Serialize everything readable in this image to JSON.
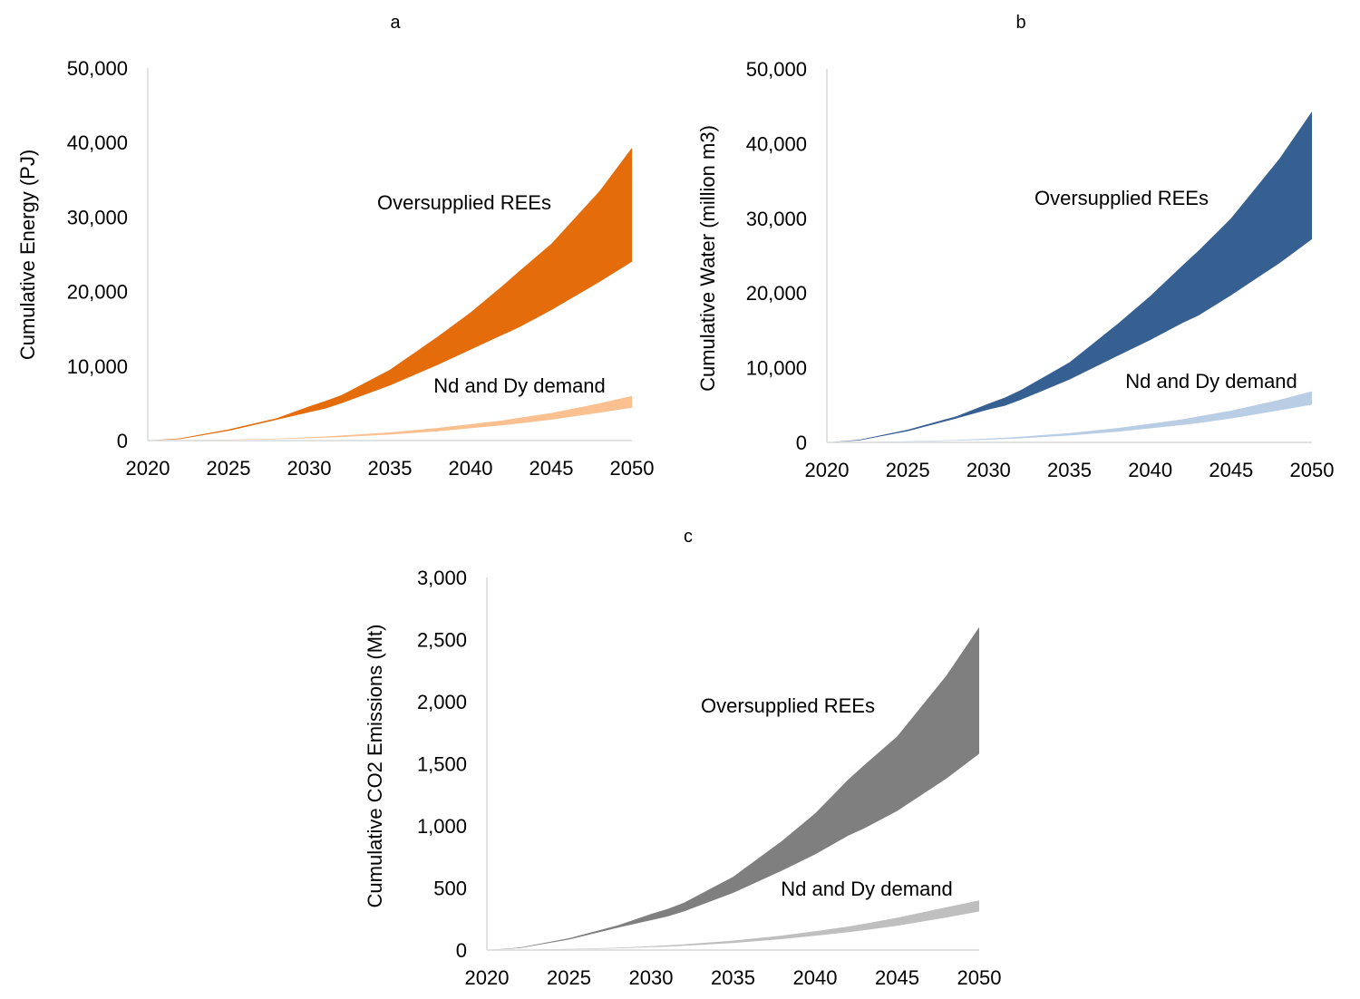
{
  "chart_data": [
    {
      "panel": "a",
      "type": "area",
      "title": "a",
      "xlabel": "",
      "ylabel": "Cumulative Energy (PJ)",
      "ylim": [
        0,
        50000
      ],
      "yticks": [
        0,
        10000,
        20000,
        30000,
        40000,
        50000
      ],
      "ytick_labels": [
        "0",
        "10,000",
        "20,000",
        "30,000",
        "40,000",
        "50,000"
      ],
      "xlim": [
        2020,
        2050
      ],
      "xticks": [
        2020,
        2025,
        2030,
        2035,
        2040,
        2045,
        2050
      ],
      "xtick_labels": [
        "2020",
        "2025",
        "2030",
        "2035",
        "2040",
        "2045",
        "2050"
      ],
      "grid": false,
      "x": [
        2020,
        2022,
        2025,
        2028,
        2030,
        2031,
        2032,
        2035,
        2038,
        2040,
        2042,
        2043,
        2045,
        2048,
        2050
      ],
      "bands": [
        {
          "label": "Oversupplied REEs",
          "color": "#e46c0a",
          "lower": [
            0,
            200,
            1300,
            2800,
            3800,
            4300,
            5000,
            7400,
            10200,
            12200,
            14200,
            15200,
            17500,
            21300,
            24000
          ],
          "upper": [
            0,
            300,
            1500,
            3000,
            4600,
            5300,
            6100,
            9500,
            14000,
            17200,
            20800,
            22700,
            26400,
            33500,
            39300
          ]
        },
        {
          "label": "Nd and Dy demand",
          "color": "#fac090",
          "lower": [
            0,
            20,
            80,
            200,
            320,
            400,
            480,
            800,
            1250,
            1650,
            2050,
            2300,
            2800,
            3750,
            4400
          ],
          "upper": [
            0,
            30,
            120,
            280,
            450,
            550,
            680,
            1100,
            1700,
            2200,
            2700,
            3050,
            3700,
            5000,
            6000
          ]
        }
      ],
      "annotations": [
        "Oversupplied REEs",
        "Nd and Dy demand"
      ]
    },
    {
      "panel": "b",
      "type": "area",
      "title": "b",
      "xlabel": "",
      "ylabel": "Cumulative Water (million m3)",
      "ylim": [
        0,
        50000
      ],
      "yticks": [
        0,
        10000,
        20000,
        30000,
        40000,
        50000
      ],
      "ytick_labels": [
        "0",
        "10,000",
        "20,000",
        "30,000",
        "40,000",
        "50,000"
      ],
      "xlim": [
        2020,
        2050
      ],
      "xticks": [
        2020,
        2025,
        2030,
        2035,
        2040,
        2045,
        2050
      ],
      "xtick_labels": [
        "2020",
        "2025",
        "2030",
        "2035",
        "2040",
        "2045",
        "2050"
      ],
      "grid": false,
      "x": [
        2020,
        2022,
        2025,
        2028,
        2030,
        2031,
        2032,
        2035,
        2038,
        2040,
        2042,
        2043,
        2045,
        2048,
        2050
      ],
      "bands": [
        {
          "label": "Oversupplied REEs",
          "color": "#376092",
          "lower": [
            0,
            250,
            1500,
            3200,
            4400,
            4900,
            5700,
            8400,
            11600,
            13700,
            16000,
            17000,
            19700,
            24000,
            27200
          ],
          "upper": [
            0,
            350,
            1700,
            3500,
            5200,
            6000,
            7000,
            10700,
            15900,
            19600,
            23700,
            25700,
            30000,
            38000,
            44300
          ]
        },
        {
          "label": "Nd and Dy demand",
          "color": "#b9cde5",
          "lower": [
            0,
            25,
            100,
            230,
            370,
            450,
            550,
            920,
            1430,
            1880,
            2340,
            2600,
            3200,
            4300,
            5050
          ],
          "upper": [
            0,
            35,
            140,
            320,
            510,
            620,
            770,
            1250,
            1930,
            2500,
            3100,
            3500,
            4250,
            5700,
            6850
          ]
        }
      ],
      "annotations": [
        "Oversupplied REEs",
        "Nd and Dy demand"
      ]
    },
    {
      "panel": "c",
      "type": "area",
      "title": "c",
      "xlabel": "",
      "ylabel": "Cumulative CO2 Emissions (Mt)",
      "ylim": [
        0,
        3000
      ],
      "yticks": [
        0,
        500,
        1000,
        1500,
        2000,
        2500,
        3000
      ],
      "ytick_labels": [
        "0",
        "500",
        "1,000",
        "1,500",
        "2,000",
        "2,500",
        "3,000"
      ],
      "xlim": [
        2020,
        2050
      ],
      "xticks": [
        2020,
        2025,
        2030,
        2035,
        2040,
        2045,
        2050
      ],
      "xtick_labels": [
        "2020",
        "2025",
        "2030",
        "2035",
        "2040",
        "2045",
        "2050"
      ],
      "grid": false,
      "x": [
        2020,
        2022,
        2025,
        2028,
        2030,
        2031,
        2032,
        2035,
        2038,
        2040,
        2042,
        2043,
        2045,
        2048,
        2050
      ],
      "bands": [
        {
          "label": "Oversupplied REEs",
          "color": "#7f7f7f",
          "lower": [
            0,
            15,
            85,
            180,
            240,
            270,
            310,
            460,
            640,
            770,
            920,
            980,
            1120,
            1380,
            1580
          ],
          "upper": [
            0,
            20,
            95,
            200,
            290,
            330,
            380,
            590,
            880,
            1100,
            1370,
            1490,
            1720,
            2210,
            2600
          ]
        },
        {
          "label": "Nd and Dy demand",
          "color": "#bfbfbf",
          "lower": [
            0,
            1,
            6,
            14,
            23,
            28,
            34,
            56,
            88,
            115,
            143,
            160,
            195,
            262,
            310
          ],
          "upper": [
            0,
            2,
            9,
            19,
            31,
            38,
            46,
            76,
            117,
            152,
            189,
            212,
            260,
            345,
            400
          ]
        }
      ],
      "annotations": [
        "Oversupplied REEs",
        "Nd and Dy demand"
      ]
    }
  ]
}
